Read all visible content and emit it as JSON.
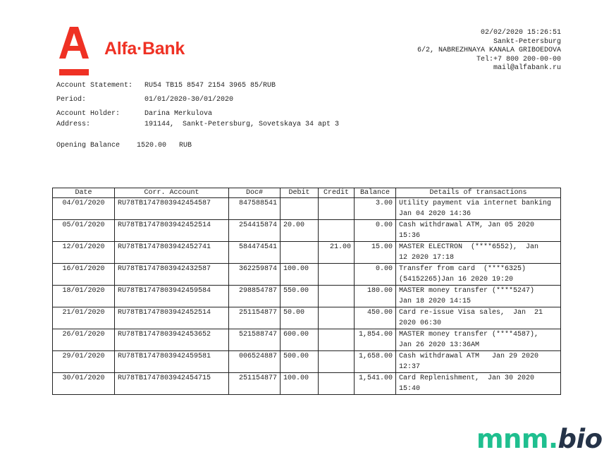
{
  "header": {
    "logo_text": "Alfa·Bank",
    "brand_color": "#ef3124",
    "bank_info": [
      "02/02/2020 15:26:51",
      "Sankt-Petersburg",
      "6/2, NABREZHNAYA KANALA GRIBOEDOVA",
      "Tel:+7 800 200-00-00",
      "mail@alfabank.ru"
    ]
  },
  "account": {
    "statement_label": "Account Statement:",
    "statement_value": "RU54 TB15 8547 2154 3965 85/RUB",
    "period_label": "Period:",
    "period_value": "01/01/2020-30/01/2020",
    "holder_label": "Account Holder:",
    "holder_value": "Darina Merkulova",
    "address_label": "Address:",
    "address_value": "191144,  Sankt-Petersburg, Sovetskaya 34 apt 3",
    "opening_balance": "Opening Balance    1520.00   RUB"
  },
  "table": {
    "columns": [
      "Date",
      "Corr. Account",
      "Doc#",
      "Debit",
      "Credit",
      "Balance",
      "Details of transactions"
    ],
    "rows": [
      [
        "04/01/2020",
        "RU78TB1747803942454587",
        "847588541",
        "",
        "",
        "3.00",
        "Utility payment via internet banking\nJan 04 2020 14:36"
      ],
      [
        "05/01/2020",
        "RU78TB1747803942452514",
        "254415874",
        "20.00",
        "",
        "0.00",
        "Cash withdrawal ATM, Jan 05 2020\n15:36"
      ],
      [
        "12/01/2020",
        "RU78TB1747803942452741",
        "584474541",
        "",
        "21.00",
        "15.00",
        "MASTER ELECTRON  (****6552),  Jan\n12 2020 17:18"
      ],
      [
        "16/01/2020",
        "RU78TB1747803942432587",
        "362259874",
        "100.00",
        "",
        "0.00",
        "Transfer from card  (****6325)\n(54152265)Jan 16 2020 19:20"
      ],
      [
        "18/01/2020",
        "RU78TB1747803942459584",
        "298854787",
        "550.00",
        "",
        "180.00",
        "MASTER money transfer (****5247)\nJan 18 2020 14:15"
      ],
      [
        "21/01/2020",
        "RU78TB1747803942452514",
        "251154877",
        "50.00",
        "",
        "450.00",
        "Card re-issue Visa sales,  Jan  21\n2020 06:30"
      ],
      [
        "26/01/2020",
        "RU78TB1747803942453652",
        "521588747",
        "600.00",
        "",
        "1,854.00",
        "MASTER money transfer (****4587),\nJan 26 2020 13:36AM"
      ],
      [
        "29/01/2020",
        "RU78TB1747803942459581",
        "006524887",
        "500.00",
        "",
        "1,658.00",
        "Cash withdrawal ATM   Jan 29 2020\n12:37"
      ],
      [
        "30/01/2020",
        "RU78TB1747803942454715",
        "251154877",
        "100.00",
        "",
        "1,541.00",
        "Card Replenishment,  Jan 30 2020\n15:40"
      ]
    ]
  },
  "watermark": {
    "part1": "mnm",
    "part2": ".",
    "part3": "bio",
    "color1": "#1fbf8f",
    "color2": "#253348"
  }
}
